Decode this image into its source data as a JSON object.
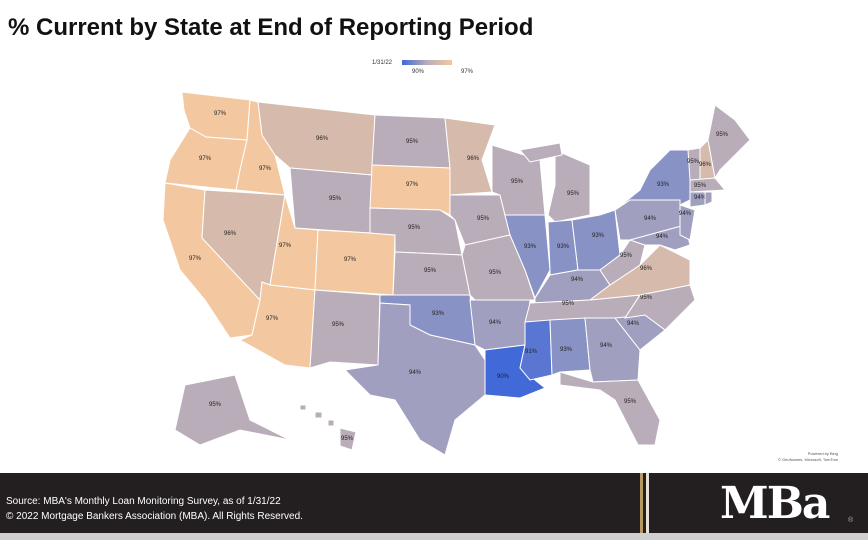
{
  "title": "% Current by State at End of Reporting Period",
  "legend": {
    "date": "1/31/22",
    "min_label": "90%",
    "max_label": "97%",
    "min": 90,
    "max": 97,
    "min_color": "#4169d8",
    "mid_color": "#b9adb9",
    "max_color": "#f3c8a0"
  },
  "states": {
    "WA": 97,
    "OR": 97,
    "CA": 97,
    "ID": 97,
    "NV": 96,
    "UT": 97,
    "AZ": 97,
    "MT": 96,
    "WY": 95,
    "CO": 97,
    "NM": 95,
    "ND": 95,
    "SD": 97,
    "NE": 95,
    "KS": 95,
    "OK": 93,
    "TX": 94,
    "MN": 96,
    "IA": 95,
    "MO": 95,
    "AR": 94,
    "LA": 90,
    "WI": 95,
    "IL": 93,
    "MI": 95,
    "IN": 93,
    "OH": 93,
    "KY": 94,
    "TN": 95,
    "MS": 91,
    "AL": 93,
    "GA": 94,
    "FL": 95,
    "SC": 94,
    "NC": 95,
    "VA": 96,
    "WV": 95,
    "PA": 94,
    "NY": 93,
    "ME": 95,
    "VT": 95,
    "NH": 96,
    "MA": 95,
    "CT": 94,
    "RI": 94,
    "NJ": 94,
    "MD": 94,
    "AK": 95,
    "HI": 95
  },
  "credit": {
    "line1": "Powered by Bing",
    "line2": "© GeoNames, Microsoft, TomTom"
  },
  "footer": {
    "source": "Source: MBA's Monthly Loan Monitoring Survey, as of 1/31/22",
    "copyright": "© 2022 Mortgage Bankers Association (MBA). All Rights Reserved.",
    "logo": "MBa"
  }
}
